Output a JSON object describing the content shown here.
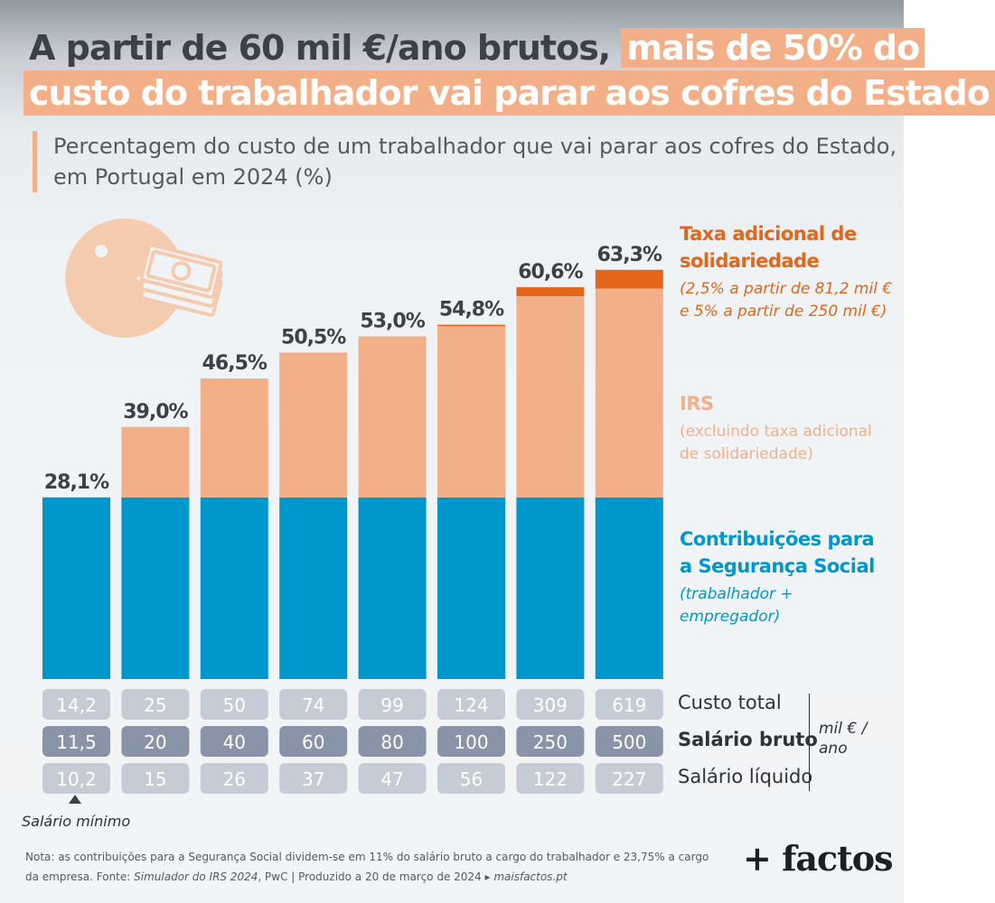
{
  "title": {
    "part1": "A partir de 60 mil €/ano brutos,",
    "part2": "mais de 50% do",
    "line2": "custo do trabalhador vai parar aos cofres do Estado"
  },
  "subtitle": {
    "line1": "Percentagem do custo de um trabalhador que vai parar aos cofres do Estado,",
    "line2": "em Portugal em 2024 (%)"
  },
  "legend": {
    "taxa_title_1": "Taxa adicional de",
    "taxa_title_2": "solidariedade",
    "taxa_note_1": "(2,5% a partir de 81,2 mil €",
    "taxa_note_2": "e 5% a partir de 250 mil €)",
    "irs_title": "IRS",
    "irs_note_1": "(excluindo taxa adicional",
    "irs_note_2": "de solidariedade)",
    "ss_title_1": "Contribuições para",
    "ss_title_2": "a Segurança Social",
    "ss_note_1": "(trabalhador +",
    "ss_note_2": "empregador)"
  },
  "colors": {
    "social_security": "#0097cd",
    "irs": "#f3b088",
    "solidarity_tax": "#e4661b",
    "title_highlight": "#f3b088",
    "box_light": "#c5ccd6",
    "box_dark": "#8a94a8"
  },
  "table": {
    "row_labels": [
      "Custo total",
      "Salário bruto",
      "Salário líquido"
    ],
    "units_1": "mil € /",
    "units_2": "ano"
  },
  "annotation": {
    "min_wage": "Salário mínimo"
  },
  "footer": {
    "line1": "Nota: as contribuições para a Segurança Social dividem-se em 11% do salário bruto a cargo do trabalhador e 23,75% a cargo",
    "line2a": "da empresa. Fonte: ",
    "line2b": "Simulador do IRS 2024",
    "line2c": ", PwC  |  Produzido a 20 de março de 2024 ▸ ",
    "line2d": "maisfactos.pt"
  },
  "brand": "+ factos",
  "chart_data": {
    "type": "bar",
    "stacked": true,
    "y_unit": "%",
    "categories": [
      "11,5",
      "20",
      "40",
      "60",
      "80",
      "100",
      "250",
      "500"
    ],
    "series": [
      {
        "name": "Contribuições para a Segurança Social",
        "values": [
          28.1,
          28.1,
          28.1,
          28.1,
          28.1,
          28.1,
          28.1,
          28.1
        ]
      },
      {
        "name": "IRS",
        "values": [
          0.0,
          10.9,
          18.4,
          22.4,
          24.9,
          26.5,
          31.1,
          32.3
        ]
      },
      {
        "name": "Taxa adicional de solidariedade",
        "values": [
          0.0,
          0.0,
          0.0,
          0.0,
          0.0,
          0.2,
          1.4,
          2.9
        ]
      }
    ],
    "totals_labels": [
      "28,1%",
      "39,0%",
      "46,5%",
      "50,5%",
      "53,0%",
      "54,8%",
      "60,6%",
      "63,3%"
    ],
    "custo_total": [
      "14,2",
      "25",
      "50",
      "74",
      "99",
      "124",
      "309",
      "619"
    ],
    "salario_bruto": [
      "11,5",
      "20",
      "40",
      "60",
      "80",
      "100",
      "250",
      "500"
    ],
    "salario_liquido": [
      "10,2",
      "15",
      "26",
      "37",
      "47",
      "56",
      "122",
      "227"
    ],
    "ylim": [
      0,
      70
    ],
    "grid": false,
    "legend": "right"
  }
}
